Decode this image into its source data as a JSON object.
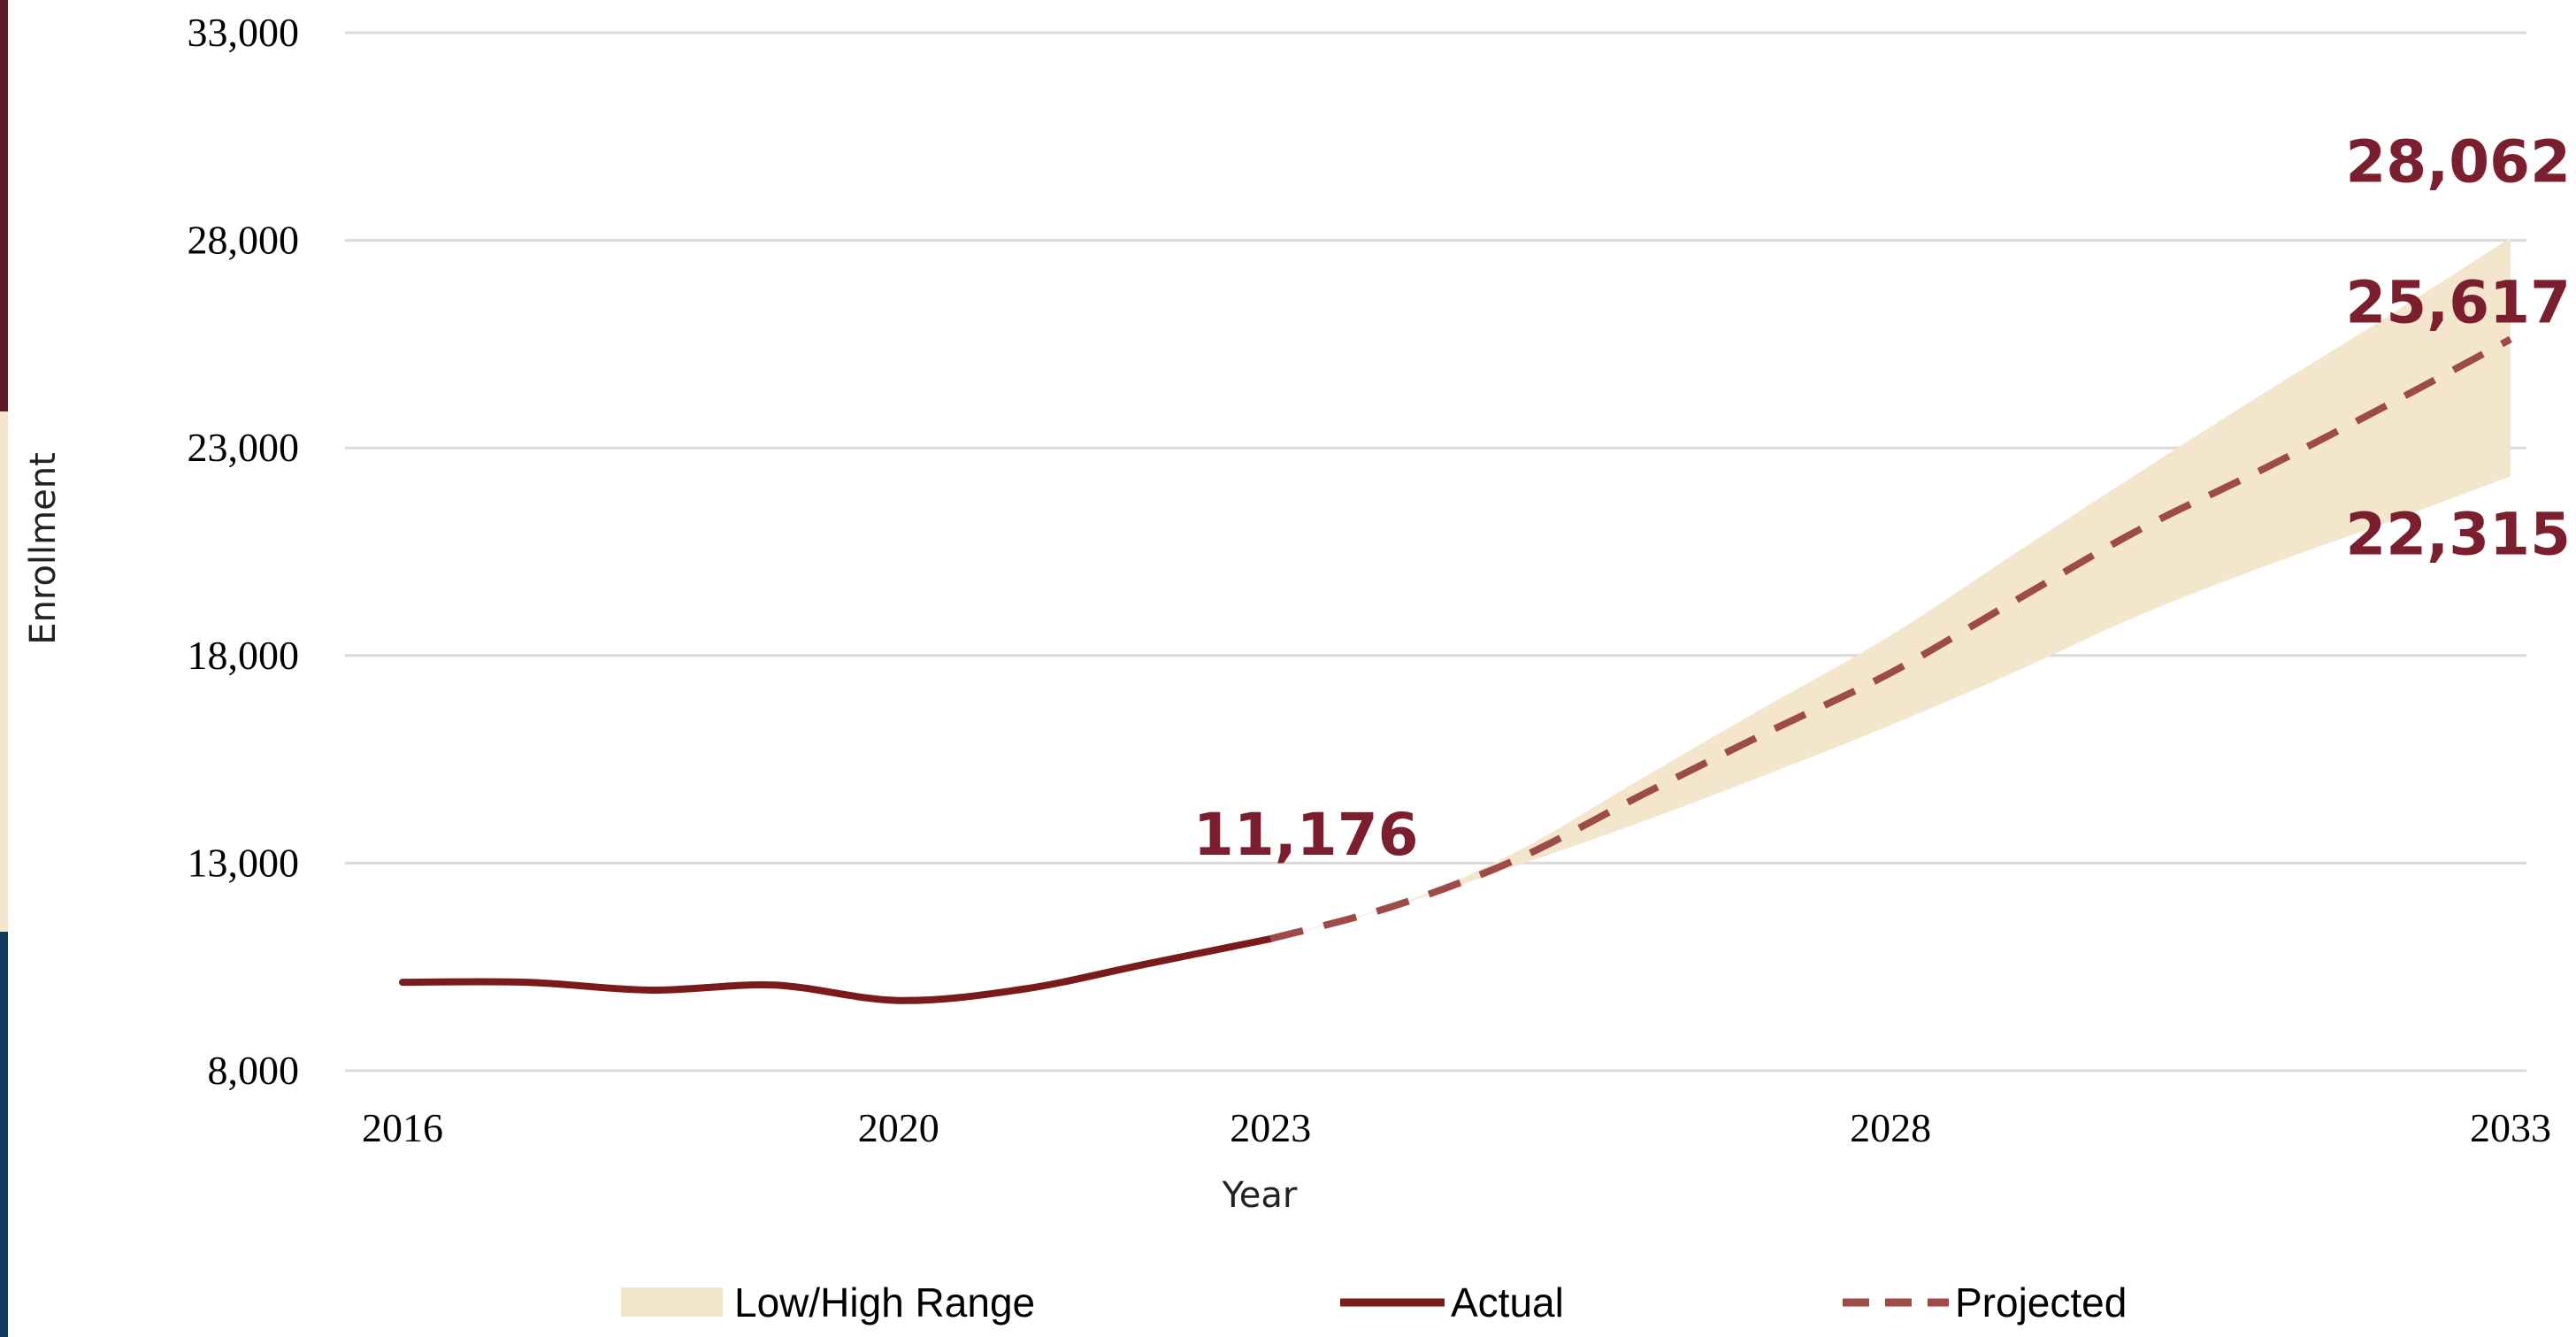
{
  "colors": {
    "actual": "#7a1a1a",
    "projected": "#9e4a48",
    "range_fill": "#f3e6cc",
    "grid": "#d9d9d9",
    "label": "#7b1f2f",
    "accent_top": "#5b1a2a",
    "accent_mid": "#f3e6cc",
    "accent_bottom": "#0f3a5a"
  },
  "chart_data": {
    "type": "line",
    "title": "",
    "xlabel": "Year",
    "ylabel": "Enrollment",
    "xlim": [
      2016,
      2033
    ],
    "ylim": [
      8000,
      33000
    ],
    "x_ticks": [
      "2016",
      "2020",
      "2023",
      "2028",
      "2033"
    ],
    "y_ticks": [
      "33,000",
      "28,000",
      "23,000",
      "18,000",
      "13,000",
      "8,000"
    ],
    "grid": true,
    "legend_position": "bottom",
    "series": [
      {
        "name": "Actual",
        "style": "solid",
        "points": [
          {
            "x": 2016,
            "y": 10130
          },
          {
            "x": 2017,
            "y": 10130
          },
          {
            "x": 2018,
            "y": 9940
          },
          {
            "x": 2019,
            "y": 10060
          },
          {
            "x": 2020,
            "y": 9690
          },
          {
            "x": 2021,
            "y": 9960
          },
          {
            "x": 2022,
            "y": 10570
          },
          {
            "x": 2023,
            "y": 11176
          }
        ]
      },
      {
        "name": "Projected",
        "style": "dashed",
        "points": [
          {
            "x": 2023,
            "y": 11176
          },
          {
            "x": 2024,
            "y": 11970
          },
          {
            "x": 2025,
            "y": 13110
          },
          {
            "x": 2026,
            "y": 14650
          },
          {
            "x": 2027,
            "y": 16140
          },
          {
            "x": 2028,
            "y": 17580
          },
          {
            "x": 2029,
            "y": 19310
          },
          {
            "x": 2030,
            "y": 21020
          },
          {
            "x": 2031,
            "y": 22480
          },
          {
            "x": 2032,
            "y": 24020
          },
          {
            "x": 2033,
            "y": 25617
          }
        ]
      },
      {
        "name": "Low/High Range",
        "style": "band",
        "low": [
          {
            "x": 2023,
            "y": 11176
          },
          {
            "x": 2024,
            "y": 11970
          },
          {
            "x": 2025,
            "y": 12950
          },
          {
            "x": 2026,
            "y": 14000
          },
          {
            "x": 2027,
            "y": 15130
          },
          {
            "x": 2028,
            "y": 16320
          },
          {
            "x": 2029,
            "y": 17600
          },
          {
            "x": 2030,
            "y": 18960
          },
          {
            "x": 2031,
            "y": 20130
          },
          {
            "x": 2032,
            "y": 21200
          },
          {
            "x": 2033,
            "y": 22315
          }
        ],
        "high": [
          {
            "x": 2023,
            "y": 11176
          },
          {
            "x": 2024,
            "y": 11970
          },
          {
            "x": 2025,
            "y": 13300
          },
          {
            "x": 2026,
            "y": 15050
          },
          {
            "x": 2027,
            "y": 16780
          },
          {
            "x": 2028,
            "y": 18480
          },
          {
            "x": 2029,
            "y": 20450
          },
          {
            "x": 2030,
            "y": 22400
          },
          {
            "x": 2031,
            "y": 24300
          },
          {
            "x": 2032,
            "y": 26150
          },
          {
            "x": 2033,
            "y": 28062
          }
        ]
      }
    ],
    "annotations": [
      {
        "text": "11,176",
        "x": 2023,
        "y": 11176,
        "position": "above"
      },
      {
        "text": "28,062",
        "x": 2033,
        "y": 28062,
        "position": "above"
      },
      {
        "text": "25,617",
        "x": 2033,
        "y": 25617,
        "position": "above"
      },
      {
        "text": "22,315",
        "x": 2033,
        "y": 22315,
        "position": "below"
      }
    ]
  },
  "legend": {
    "items": [
      {
        "label": "Low/High Range",
        "style": "band"
      },
      {
        "label": "Actual",
        "style": "solid"
      },
      {
        "label": "Projected",
        "style": "dashed"
      }
    ]
  }
}
